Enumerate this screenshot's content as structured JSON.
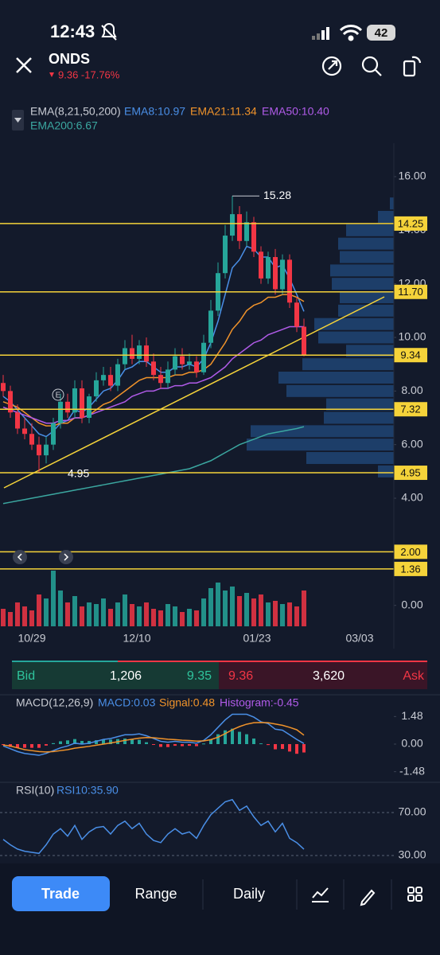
{
  "status_bar": {
    "time": "12:43",
    "battery": "42"
  },
  "header": {
    "symbol": "ONDS",
    "quote": "9.36 -17.76%"
  },
  "ema_legend": {
    "title": "EMA(8,21,50,200)",
    "items": [
      "EMA8:10.97",
      "EMA21:11.34",
      "EMA50:10.40",
      "EMA200:6.67"
    ]
  },
  "price_chart": {
    "yticks": [
      {
        "value": 16,
        "label": "16.00"
      },
      {
        "value": 14,
        "label": "14.00"
      },
      {
        "value": 12,
        "label": "12.00"
      },
      {
        "value": 10,
        "label": "10.00"
      },
      {
        "value": 8,
        "label": "8.00"
      },
      {
        "value": 6,
        "label": "6.00"
      },
      {
        "value": 4,
        "label": "4.00"
      },
      {
        "value": 0,
        "label": "0.00"
      }
    ],
    "levels": [
      14.25,
      {
        "value": 11.7,
        "label": "11.70"
      },
      9.34,
      7.32,
      4.95,
      {
        "value": 2,
        "label": "2.00"
      },
      1.36
    ],
    "high_annotation": 15.28,
    "low_annotation": 4.95,
    "earnings_marker": "E",
    "x_labels": [
      "10/29",
      "12/10",
      "01/23",
      "03/03"
    ],
    "candles": {
      "open": [
        8.3,
        8.0,
        7.2,
        6.6,
        6.4,
        6.0,
        5.6,
        6.0,
        6.8,
        7.6,
        7.2,
        8.1,
        7.0,
        7.8,
        8.4,
        8.6,
        8.2,
        9.0,
        9.6,
        9.2,
        9.7,
        9.1,
        8.6,
        8.3,
        8.8,
        9.3,
        9.0,
        9.1,
        8.7,
        9.8,
        11.0,
        12.4,
        13.8,
        14.6,
        13.6,
        14.3,
        13.2,
        12.2,
        13.0,
        11.8,
        12.9,
        11.3,
        10.4
      ],
      "high": [
        8.6,
        8.2,
        7.5,
        7.0,
        6.8,
        6.3,
        6.3,
        7.0,
        7.9,
        7.9,
        8.4,
        8.4,
        7.9,
        8.7,
        8.9,
        8.9,
        9.2,
        9.9,
        10.1,
        9.9,
        10.0,
        9.4,
        8.9,
        9.1,
        9.6,
        9.6,
        9.4,
        9.3,
        10.1,
        11.4,
        12.8,
        14.2,
        15.28,
        14.9,
        14.7,
        14.5,
        13.4,
        13.2,
        13.3,
        13.1,
        13.1,
        11.5,
        10.7
      ],
      "low": [
        7.8,
        7.0,
        6.4,
        6.2,
        5.8,
        4.95,
        5.3,
        5.8,
        6.6,
        7.0,
        7.0,
        6.8,
        6.8,
        7.6,
        8.2,
        8.0,
        8.0,
        8.8,
        9.0,
        9.0,
        8.9,
        8.4,
        8.1,
        8.1,
        8.6,
        8.8,
        8.8,
        8.5,
        8.6,
        9.6,
        10.8,
        12.2,
        13.6,
        13.3,
        13.4,
        13.0,
        12.0,
        12.0,
        11.6,
        11.6,
        11.1,
        10.2,
        9.3
      ],
      "close": [
        8.0,
        7.2,
        6.6,
        6.4,
        6.0,
        5.6,
        6.0,
        6.8,
        7.6,
        7.2,
        8.1,
        7.0,
        7.8,
        8.4,
        8.6,
        8.2,
        9.0,
        9.6,
        9.2,
        9.7,
        9.1,
        8.6,
        8.3,
        8.8,
        9.3,
        9.0,
        9.1,
        8.7,
        9.8,
        11.0,
        12.4,
        13.8,
        14.6,
        13.6,
        14.3,
        13.2,
        12.2,
        13.0,
        11.8,
        12.9,
        11.3,
        10.4,
        9.36
      ]
    },
    "ema_lines": [
      {
        "color": "#4a8fe7",
        "values": [
          7.8,
          7.6,
          7.3,
          7.0,
          6.7,
          6.4,
          6.3,
          6.5,
          6.8,
          6.9,
          7.3,
          7.2,
          7.4,
          7.7,
          8.0,
          8.1,
          8.4,
          8.8,
          8.9,
          9.1,
          9.1,
          8.9,
          8.7,
          8.7,
          8.9,
          8.9,
          9.0,
          8.9,
          9.2,
          9.8,
          10.6,
          11.6,
          12.6,
          12.9,
          13.4,
          13.3,
          13.0,
          13.0,
          12.6,
          12.7,
          12.2,
          11.6,
          10.97
        ]
      },
      {
        "color": "#f0932b",
        "values": [
          7.6,
          7.5,
          7.4,
          7.2,
          7.0,
          6.8,
          6.7,
          6.7,
          6.8,
          6.8,
          7.0,
          7.0,
          7.1,
          7.3,
          7.5,
          7.6,
          7.8,
          8.0,
          8.2,
          8.4,
          8.5,
          8.5,
          8.5,
          8.5,
          8.6,
          8.6,
          8.7,
          8.7,
          8.8,
          9.0,
          9.4,
          9.8,
          10.3,
          10.6,
          11.0,
          11.2,
          11.3,
          11.5,
          11.5,
          11.6,
          11.6,
          11.5,
          11.34
        ]
      },
      {
        "color": "#b05be8",
        "values": [
          7.4,
          7.3,
          7.2,
          7.1,
          7.0,
          6.9,
          6.8,
          6.8,
          6.9,
          6.9,
          7.0,
          7.0,
          7.1,
          7.2,
          7.3,
          7.4,
          7.5,
          7.6,
          7.8,
          7.9,
          8.0,
          8.0,
          8.1,
          8.1,
          8.2,
          8.2,
          8.3,
          8.3,
          8.4,
          8.5,
          8.7,
          8.9,
          9.2,
          9.4,
          9.6,
          9.8,
          9.9,
          10.1,
          10.2,
          10.3,
          10.4,
          10.4,
          10.4
        ]
      },
      {
        "color": "#3ba7a0",
        "values": [
          3.8,
          3.85,
          3.9,
          3.95,
          4.0,
          4.05,
          4.1,
          4.15,
          4.2,
          4.25,
          4.3,
          4.35,
          4.4,
          4.45,
          4.5,
          4.55,
          4.6,
          4.65,
          4.7,
          4.75,
          4.8,
          4.85,
          4.9,
          4.95,
          5.0,
          5.05,
          5.1,
          5.2,
          5.3,
          5.4,
          5.55,
          5.7,
          5.85,
          6.0,
          6.1,
          6.2,
          6.3,
          6.4,
          6.45,
          6.5,
          6.55,
          6.6,
          6.67
        ]
      }
    ],
    "volume": [
      22,
      18,
      30,
      25,
      20,
      40,
      35,
      70,
      45,
      30,
      38,
      25,
      30,
      28,
      35,
      22,
      30,
      40,
      28,
      25,
      30,
      22,
      20,
      28,
      25,
      18,
      22,
      20,
      35,
      48,
      55,
      45,
      50,
      38,
      42,
      35,
      40,
      30,
      32,
      28,
      30,
      25,
      45
    ],
    "volume_profile": {
      "prices": [
        15.0,
        14.5,
        14.0,
        13.5,
        13.0,
        12.5,
        12.0,
        11.5,
        11.0,
        10.5,
        10.0,
        9.5,
        9.0,
        8.5,
        8.0,
        7.5,
        7.0,
        6.5,
        6.0,
        5.5,
        5.0
      ],
      "values": [
        5,
        20,
        60,
        70,
        68,
        80,
        78,
        68,
        70,
        100,
        95,
        60,
        115,
        145,
        135,
        85,
        88,
        180,
        185,
        110,
        20
      ]
    }
  },
  "order_book": {
    "bid_label": "Bid",
    "bid_size": "1,206",
    "bid_price": "9.35",
    "ask_price": "9.36",
    "ask_size": "3,620",
    "ask_label": "Ask"
  },
  "macd": {
    "title": "MACD(12,26,9)",
    "legend": [
      "MACD:0.03",
      "Signal:0.48",
      "Histogram:-0.45"
    ],
    "yticks": [
      1.48,
      {
        "value": 0,
        "label": "0.00"
      },
      -1.48
    ],
    "macd": [
      -0.1,
      -0.25,
      -0.4,
      -0.5,
      -0.55,
      -0.6,
      -0.5,
      -0.35,
      -0.2,
      -0.1,
      0.05,
      0.0,
      0.05,
      0.15,
      0.25,
      0.3,
      0.4,
      0.5,
      0.5,
      0.55,
      0.45,
      0.3,
      0.15,
      0.1,
      0.15,
      0.1,
      0.1,
      0.05,
      0.2,
      0.5,
      0.9,
      1.3,
      1.6,
      1.6,
      1.6,
      1.45,
      1.2,
      1.1,
      0.8,
      0.75,
      0.5,
      0.25,
      0.03
    ],
    "signal": [
      -0.05,
      -0.1,
      -0.2,
      -0.3,
      -0.35,
      -0.4,
      -0.42,
      -0.4,
      -0.35,
      -0.3,
      -0.22,
      -0.17,
      -0.12,
      -0.06,
      0.0,
      0.06,
      0.13,
      0.2,
      0.26,
      0.32,
      0.35,
      0.34,
      0.3,
      0.26,
      0.24,
      0.21,
      0.19,
      0.16,
      0.17,
      0.24,
      0.37,
      0.56,
      0.77,
      0.94,
      1.07,
      1.15,
      1.16,
      1.15,
      1.08,
      1.01,
      0.9,
      0.77,
      0.48
    ],
    "histogram": [
      -0.05,
      -0.15,
      -0.2,
      -0.2,
      -0.2,
      -0.2,
      -0.08,
      0.05,
      0.15,
      0.2,
      0.27,
      0.17,
      0.17,
      0.21,
      0.25,
      0.24,
      0.27,
      0.3,
      0.24,
      0.23,
      0.1,
      -0.04,
      -0.15,
      -0.16,
      -0.09,
      -0.11,
      -0.09,
      -0.11,
      0.03,
      0.26,
      0.53,
      0.74,
      0.83,
      0.66,
      0.53,
      0.3,
      0.04,
      -0.05,
      -0.28,
      -0.26,
      -0.4,
      -0.52,
      -0.45
    ]
  },
  "rsi": {
    "title": "RSI(10)",
    "legend": "RSI10:35.90",
    "yticks": [
      {
        "value": 70,
        "label": "70.00"
      },
      {
        "value": 30,
        "label": "30.00"
      }
    ],
    "values": [
      45,
      40,
      36,
      34,
      33,
      32,
      40,
      50,
      55,
      48,
      58,
      45,
      52,
      56,
      57,
      50,
      58,
      62,
      55,
      60,
      50,
      44,
      42,
      50,
      55,
      50,
      52,
      46,
      58,
      68,
      74,
      80,
      82,
      72,
      76,
      66,
      58,
      62,
      52,
      60,
      46,
      42,
      35.9
    ]
  },
  "toolbar": {
    "buttons": [
      "Trade",
      "Range",
      "Daily"
    ]
  }
}
